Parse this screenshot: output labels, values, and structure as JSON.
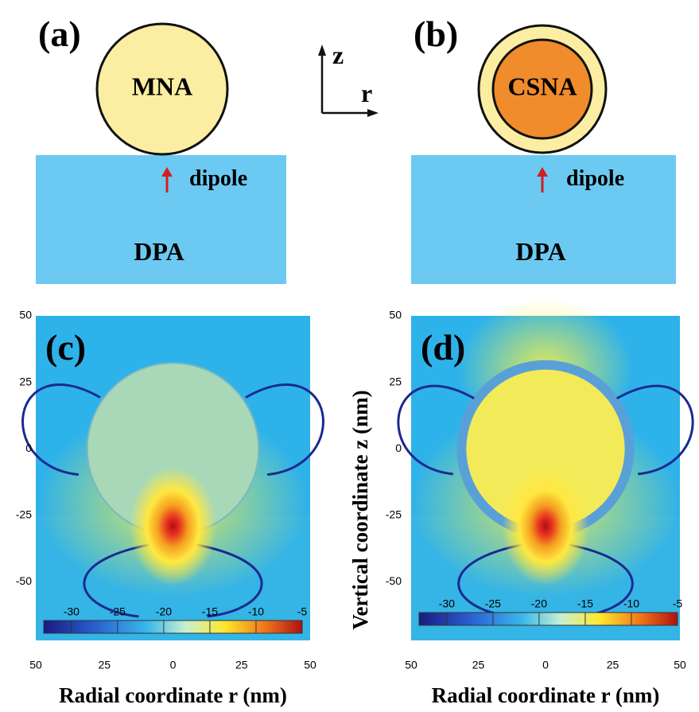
{
  "panels": {
    "a": {
      "label": "(a)",
      "particle": "MNA",
      "dipole": "dipole",
      "substrate": "DPA"
    },
    "b": {
      "label": "(b)",
      "particle": "CSNA",
      "dipole": "dipole",
      "substrate": "DPA"
    },
    "axes_icon": {
      "z": "z",
      "r": "r"
    },
    "c": {
      "label": "(c)"
    },
    "d": {
      "label": "(d)"
    }
  },
  "field_maps": {
    "xlim": [
      -50,
      50
    ],
    "ylim": [
      -72,
      50
    ],
    "xticks": [
      {
        "value": -50,
        "label": "50"
      },
      {
        "value": -25,
        "label": "25"
      },
      0,
      25,
      50
    ],
    "yticks": [
      50,
      25,
      0,
      -25,
      -50
    ],
    "xlabel": "Radial coordinate r (nm)",
    "ylabel": "Vertical coordinate z (nm)",
    "colorbar": {
      "lim": [
        -33,
        -5
      ],
      "ticks": [
        -30,
        -25,
        -20,
        -15,
        -10,
        -5
      ]
    }
  }
}
